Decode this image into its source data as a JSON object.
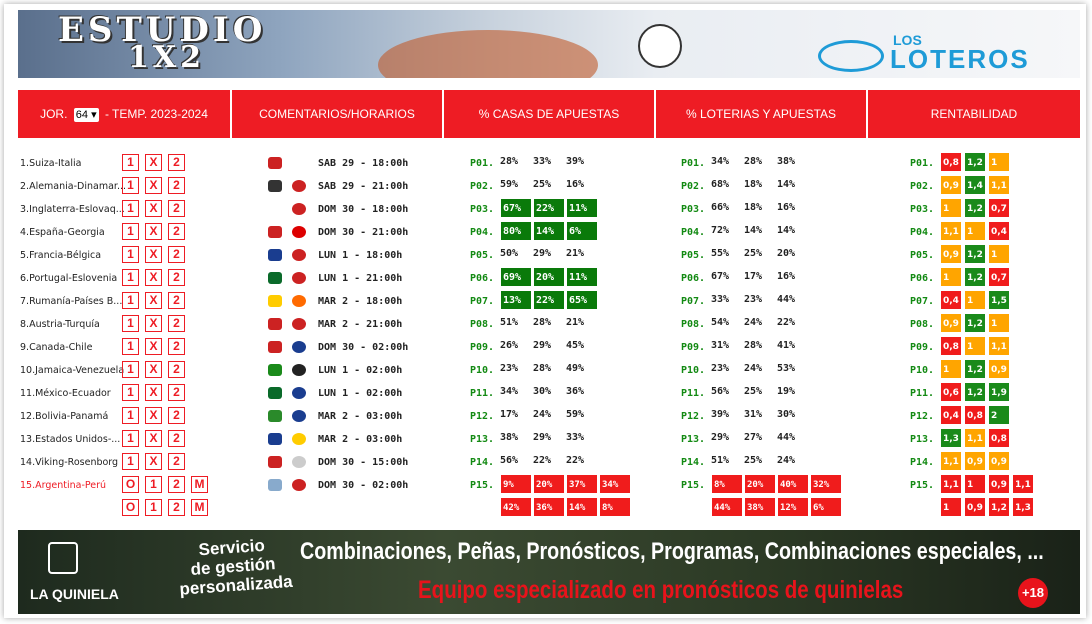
{
  "header": {
    "title_line1": "ESTUDIO",
    "title_line2": "1X2",
    "brand_small": "LOS",
    "brand": "LOTEROS"
  },
  "toolbar": {
    "jornada_label": "JOR.",
    "jornada": "64",
    "season": "- TEMP. 2023-2024",
    "columns": [
      "COMENTARIOS/HORARIOS",
      "% CASAS DE APUESTAS",
      "% LOTERIAS Y APUESTAS",
      "RENTABILIDAD"
    ]
  },
  "matches": [
    {
      "name": "1.Suiza-Italia",
      "time": "SAB 29 - 18:00h",
      "code": "P01.",
      "casas_style": "plain",
      "loterias_style": "plain",
      "lines": [
        {
          "options": [
            "1",
            "X",
            "2"
          ],
          "casas": [
            "28%",
            "33%",
            "39%"
          ],
          "loterias": [
            "34%",
            "28%",
            "38%"
          ],
          "rent": [
            "0,8",
            "1,2",
            "1"
          ],
          "rent_levels": [
            "low",
            "high",
            "mid"
          ]
        }
      ]
    },
    {
      "name": "2.Alemania-Dinamar...",
      "time": "SAB 29 - 21:00h",
      "code": "P02.",
      "casas_style": "plain",
      "loterias_style": "plain",
      "lines": [
        {
          "options": [
            "1",
            "X",
            "2"
          ],
          "casas": [
            "59%",
            "25%",
            "16%"
          ],
          "loterias": [
            "68%",
            "18%",
            "14%"
          ],
          "rent": [
            "0,9",
            "1,4",
            "1,1"
          ],
          "rent_levels": [
            "mid",
            "high",
            "mid"
          ]
        }
      ]
    },
    {
      "name": "3.Inglaterra-Eslovaq...",
      "time": "DOM 30 - 18:00h",
      "code": "P03.",
      "casas_style": "green",
      "loterias_style": "plain",
      "lines": [
        {
          "options": [
            "1",
            "X",
            "2"
          ],
          "casas": [
            "67%",
            "22%",
            "11%"
          ],
          "loterias": [
            "66%",
            "18%",
            "16%"
          ],
          "rent": [
            "1",
            "1,2",
            "0,7"
          ],
          "rent_levels": [
            "mid",
            "high",
            "low"
          ]
        }
      ]
    },
    {
      "name": "4.España-Georgia",
      "time": "DOM 30 - 21:00h",
      "code": "P04.",
      "casas_style": "green",
      "loterias_style": "plain",
      "lines": [
        {
          "options": [
            "1",
            "X",
            "2"
          ],
          "casas": [
            "80%",
            "14%",
            "6%"
          ],
          "loterias": [
            "72%",
            "14%",
            "14%"
          ],
          "rent": [
            "1,1",
            "1",
            "0,4"
          ],
          "rent_levels": [
            "mid",
            "mid",
            "low"
          ]
        }
      ]
    },
    {
      "name": "5.Francia-Bélgica",
      "time": "LUN 1 - 18:00h",
      "code": "P05.",
      "casas_style": "plain",
      "loterias_style": "plain",
      "lines": [
        {
          "options": [
            "1",
            "X",
            "2"
          ],
          "casas": [
            "50%",
            "29%",
            "21%"
          ],
          "loterias": [
            "55%",
            "25%",
            "20%"
          ],
          "rent": [
            "0,9",
            "1,2",
            "1"
          ],
          "rent_levels": [
            "mid",
            "high",
            "mid"
          ]
        }
      ]
    },
    {
      "name": "6.Portugal-Eslovenia",
      "time": "LUN 1 - 21:00h",
      "code": "P06.",
      "casas_style": "green",
      "loterias_style": "plain",
      "lines": [
        {
          "options": [
            "1",
            "X",
            "2"
          ],
          "casas": [
            "69%",
            "20%",
            "11%"
          ],
          "loterias": [
            "67%",
            "17%",
            "16%"
          ],
          "rent": [
            "1",
            "1,2",
            "0,7"
          ],
          "rent_levels": [
            "mid",
            "high",
            "low"
          ]
        }
      ]
    },
    {
      "name": "7.Rumanía-Países B...",
      "time": "MAR 2 - 18:00h",
      "code": "P07.",
      "casas_style": "green",
      "loterias_style": "plain",
      "lines": [
        {
          "options": [
            "1",
            "X",
            "2"
          ],
          "casas": [
            "13%",
            "22%",
            "65%"
          ],
          "loterias": [
            "33%",
            "23%",
            "44%"
          ],
          "rent": [
            "0,4",
            "1",
            "1,5"
          ],
          "rent_levels": [
            "low",
            "mid",
            "high"
          ]
        }
      ]
    },
    {
      "name": "8.Austria-Turquía",
      "time": "MAR 2 - 21:00h",
      "code": "P08.",
      "casas_style": "plain",
      "loterias_style": "plain",
      "lines": [
        {
          "options": [
            "1",
            "X",
            "2"
          ],
          "casas": [
            "51%",
            "28%",
            "21%"
          ],
          "loterias": [
            "54%",
            "24%",
            "22%"
          ],
          "rent": [
            "0,9",
            "1,2",
            "1"
          ],
          "rent_levels": [
            "mid",
            "high",
            "mid"
          ]
        }
      ]
    },
    {
      "name": "9.Canada-Chile",
      "time": "DOM 30 - 02:00h",
      "code": "P09.",
      "casas_style": "plain",
      "loterias_style": "plain",
      "lines": [
        {
          "options": [
            "1",
            "X",
            "2"
          ],
          "casas": [
            "26%",
            "29%",
            "45%"
          ],
          "loterias": [
            "31%",
            "28%",
            "41%"
          ],
          "rent": [
            "0,8",
            "1",
            "1,1"
          ],
          "rent_levels": [
            "low",
            "mid",
            "mid"
          ]
        }
      ]
    },
    {
      "name": "10.Jamaica-Venezuela",
      "time": "LUN 1 - 02:00h",
      "code": "P10.",
      "casas_style": "plain",
      "loterias_style": "plain",
      "lines": [
        {
          "options": [
            "1",
            "X",
            "2"
          ],
          "casas": [
            "23%",
            "28%",
            "49%"
          ],
          "loterias": [
            "23%",
            "24%",
            "53%"
          ],
          "rent": [
            "1",
            "1,2",
            "0,9"
          ],
          "rent_levels": [
            "mid",
            "high",
            "mid"
          ]
        }
      ]
    },
    {
      "name": "11.México-Ecuador",
      "time": "LUN 1 - 02:00h",
      "code": "P11.",
      "casas_style": "plain",
      "loterias_style": "plain",
      "lines": [
        {
          "options": [
            "1",
            "X",
            "2"
          ],
          "casas": [
            "34%",
            "30%",
            "36%"
          ],
          "loterias": [
            "56%",
            "25%",
            "19%"
          ],
          "rent": [
            "0,6",
            "1,2",
            "1,9"
          ],
          "rent_levels": [
            "low",
            "high",
            "high"
          ]
        }
      ]
    },
    {
      "name": "12.Bolivia-Panamá",
      "time": "MAR 2 - 03:00h",
      "code": "P12.",
      "casas_style": "plain",
      "loterias_style": "plain",
      "lines": [
        {
          "options": [
            "1",
            "X",
            "2"
          ],
          "casas": [
            "17%",
            "24%",
            "59%"
          ],
          "loterias": [
            "39%",
            "31%",
            "30%"
          ],
          "rent": [
            "0,4",
            "0,8",
            "2"
          ],
          "rent_levels": [
            "low",
            "low",
            "high"
          ]
        }
      ]
    },
    {
      "name": "13.Estados Unidos-...",
      "time": "MAR 2 - 03:00h",
      "code": "P13.",
      "casas_style": "plain",
      "loterias_style": "plain",
      "lines": [
        {
          "options": [
            "1",
            "X",
            "2"
          ],
          "casas": [
            "38%",
            "29%",
            "33%"
          ],
          "loterias": [
            "29%",
            "27%",
            "44%"
          ],
          "rent": [
            "1,3",
            "1,1",
            "0,8"
          ],
          "rent_levels": [
            "high",
            "mid",
            "low"
          ]
        }
      ]
    },
    {
      "name": "14.Viking-Rosenborg",
      "time": "DOM 30 - 15:00h",
      "code": "P14.",
      "casas_style": "plain",
      "loterias_style": "plain",
      "lines": [
        {
          "options": [
            "1",
            "X",
            "2"
          ],
          "casas": [
            "56%",
            "22%",
            "22%"
          ],
          "loterias": [
            "51%",
            "25%",
            "24%"
          ],
          "rent": [
            "1,1",
            "0,9",
            "0,9"
          ],
          "rent_levels": [
            "mid",
            "mid",
            "mid"
          ]
        }
      ]
    },
    {
      "name": "15.Argentina-Perú",
      "featured": true,
      "time": "DOM 30 - 02:00h",
      "code": "P15.",
      "casas_style": "red",
      "loterias_style": "red",
      "lines": [
        {
          "options": [
            "O",
            "1",
            "2",
            "M"
          ],
          "casas": [
            "9%",
            "20%",
            "37%",
            "34%"
          ],
          "loterias": [
            "8%",
            "20%",
            "40%",
            "32%"
          ],
          "rent": [
            "1,1",
            "1",
            "0,9",
            "1,1"
          ],
          "rent_levels": [
            "low",
            "low",
            "low",
            "low"
          ]
        },
        {
          "options": [
            "O",
            "1",
            "2",
            "M"
          ],
          "casas": [
            "42%",
            "36%",
            "14%",
            "8%"
          ],
          "loterias": [
            "44%",
            "38%",
            "12%",
            "6%"
          ],
          "rent": [
            "1",
            "0,9",
            "1,2",
            "1,3"
          ],
          "rent_levels": [
            "low",
            "low",
            "low",
            "low"
          ]
        }
      ]
    }
  ],
  "footer": {
    "brand": "LA QUINIELA",
    "service": [
      "Servicio",
      "de gestión",
      "personalizada"
    ],
    "headline": "Combinaciones, Peñas, Pronósticos, Programas, Combinaciones especiales, ...",
    "tagline": "Equipo especializado en pronósticos de quinielas",
    "age": "+18"
  }
}
